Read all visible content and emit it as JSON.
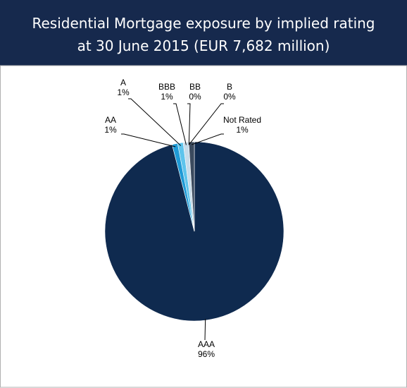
{
  "chart_data": {
    "type": "pie",
    "title": [
      "Residential Mortgage exposure by implied rating",
      "at 30 June 2015 (EUR 7,682 million)"
    ],
    "categories": [
      "AAA",
      "AA",
      "A",
      "BBB",
      "BB",
      "B",
      "Not Rated"
    ],
    "values": [
      96,
      1,
      1,
      1,
      0,
      0,
      1
    ],
    "value_labels": [
      "96%",
      "1%",
      "1%",
      "1%",
      "0%",
      "0%",
      "1%"
    ],
    "colors": [
      "#0f2a4f",
      "#1f9ad6",
      "#5ec4ec",
      "#c7dcea",
      "#ffffff",
      "#9aa3ad",
      "#3b4a5e"
    ]
  }
}
